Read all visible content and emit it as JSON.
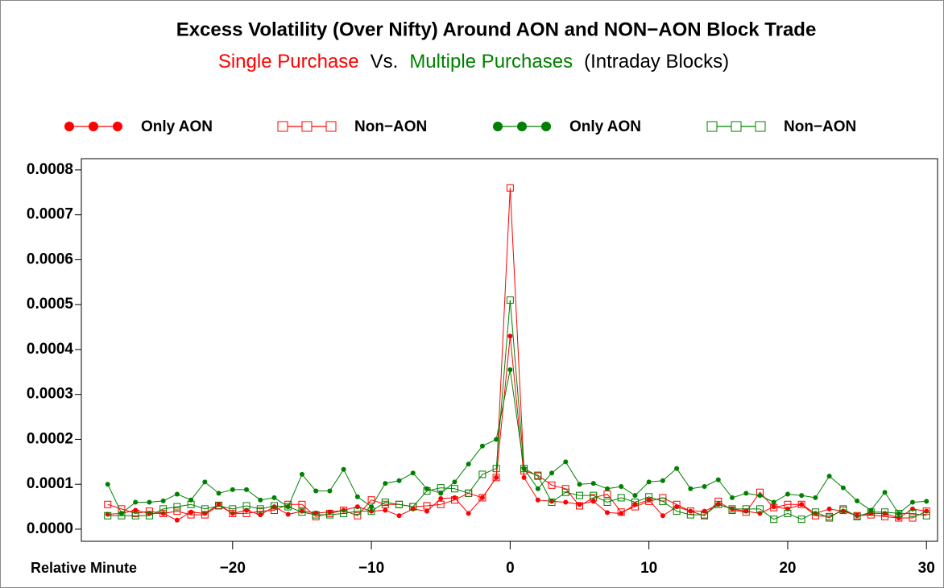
{
  "chart_data": {
    "type": "line",
    "title": "Excess Volatility (Over Nifty) Around AON and NON−AON Block Trade",
    "subtitle_parts": [
      {
        "text": "Single Purchase",
        "color": "#ff0000"
      },
      {
        "text": "Vs.",
        "color": "#000000"
      },
      {
        "text": "Multiple Purchases",
        "color": "#008000"
      },
      {
        "text": "(Intraday Blocks)",
        "color": "#000000"
      }
    ],
    "x_label": "Relative Minute",
    "x": [
      -29,
      -28,
      -27,
      -26,
      -25,
      -24,
      -23,
      -22,
      -21,
      -20,
      -19,
      -18,
      -17,
      -16,
      -15,
      -14,
      -13,
      -12,
      -11,
      -10,
      -9,
      -8,
      -7,
      -6,
      -5,
      -4,
      -3,
      -2,
      -1,
      0,
      1,
      2,
      3,
      4,
      5,
      6,
      7,
      8,
      9,
      10,
      11,
      12,
      13,
      14,
      15,
      16,
      17,
      18,
      19,
      20,
      21,
      22,
      23,
      24,
      25,
      26,
      27,
      28,
      29,
      30
    ],
    "series": [
      {
        "name": "Only AON",
        "color": "#ff0000",
        "marker": "filled-circle",
        "values": [
          3.3e-05,
          3.5e-05,
          4.2e-05,
          3.5e-05,
          3.5e-05,
          2e-05,
          3.8e-05,
          3.5e-05,
          5.5e-05,
          3.5e-05,
          4.2e-05,
          3.2e-05,
          5e-05,
          3.3e-05,
          4e-05,
          3.6e-05,
          3.8e-05,
          4.2e-05,
          5e-05,
          4e-05,
          4.2e-05,
          3e-05,
          4.5e-05,
          4e-05,
          6.8e-05,
          7e-05,
          3.5e-05,
          7e-05,
          0.000115,
          0.00043,
          0.000115,
          6.5e-05,
          6.2e-05,
          6e-05,
          5.5e-05,
          6.2e-05,
          3.7e-05,
          3.5e-05,
          5.5e-05,
          6.5e-05,
          3e-05,
          5e-05,
          4e-05,
          4e-05,
          5.5e-05,
          4.5e-05,
          4e-05,
          3.5e-05,
          5e-05,
          4.5e-05,
          5.5e-05,
          3.5e-05,
          4.5e-05,
          4e-05,
          3e-05,
          3.5e-05,
          3.5e-05,
          2.5e-05,
          4.5e-05,
          4e-05
        ]
      },
      {
        "name": "Non−AON",
        "color": "#ff0000",
        "marker": "open-square",
        "values": [
          5.5e-05,
          4.5e-05,
          3.5e-05,
          4e-05,
          3.5e-05,
          4e-05,
          3.2e-05,
          3.2e-05,
          5.3e-05,
          3.5e-05,
          3.5e-05,
          4e-05,
          4.2e-05,
          5.5e-05,
          5.5e-05,
          2.8e-05,
          3.5e-05,
          4.2e-05,
          3e-05,
          6.5e-05,
          5.5e-05,
          5.5e-05,
          5e-05,
          5.2e-05,
          5.5e-05,
          6.5e-05,
          8e-05,
          7e-05,
          0.000115,
          0.00076,
          0.00013,
          0.00012,
          9.8e-05,
          9e-05,
          5.2e-05,
          7e-05,
          7.8e-05,
          3.8e-05,
          5e-05,
          6.2e-05,
          7e-05,
          5.5e-05,
          4e-05,
          3e-05,
          6.2e-05,
          4.2e-05,
          3.8e-05,
          8.2e-05,
          4.8e-05,
          5.5e-05,
          5.5e-05,
          3e-05,
          2.8e-05,
          4.2e-05,
          3e-05,
          3.2e-05,
          2.8e-05,
          2.5e-05,
          2.5e-05,
          4e-05
        ]
      },
      {
        "name": "Only AON",
        "color": "#008000",
        "marker": "filled-circle",
        "values": [
          0.0001,
          3.5e-05,
          6e-05,
          6e-05,
          6.3e-05,
          7.8e-05,
          6.5e-05,
          0.000105,
          8e-05,
          8.8e-05,
          8.8e-05,
          6.5e-05,
          7e-05,
          5e-05,
          0.000122,
          8.5e-05,
          8.5e-05,
          0.000133,
          7.2e-05,
          5e-05,
          0.000102,
          0.000108,
          0.000125,
          9e-05,
          8e-05,
          0.000105,
          0.000145,
          0.000185,
          0.0002,
          0.000355,
          0.000135,
          9e-05,
          0.000125,
          0.00015,
          0.0001,
          0.000102,
          9e-05,
          9.5e-05,
          7.5e-05,
          0.000105,
          0.000108,
          0.000135,
          9e-05,
          9.5e-05,
          0.00011,
          7e-05,
          8e-05,
          7.5e-05,
          6e-05,
          7.8e-05,
          7.5e-05,
          7e-05,
          0.000118,
          9.2e-05,
          6.3e-05,
          4.2e-05,
          8.2e-05,
          3.5e-05,
          6e-05,
          6.2e-05
        ]
      },
      {
        "name": "Non−AON",
        "color": "#008000",
        "marker": "open-square",
        "values": [
          3e-05,
          3e-05,
          3e-05,
          3e-05,
          4.5e-05,
          5e-05,
          5.5e-05,
          4.5e-05,
          5.2e-05,
          4.5e-05,
          5.2e-05,
          4.5e-05,
          5.2e-05,
          5e-05,
          3.8e-05,
          3.2e-05,
          3.2e-05,
          3.5e-05,
          4e-05,
          4e-05,
          6e-05,
          5.5e-05,
          5e-05,
          8.5e-05,
          9.2e-05,
          9e-05,
          8e-05,
          0.000122,
          0.000135,
          0.00051,
          0.000135,
          0.000118,
          6e-05,
          8.2e-05,
          7.5e-05,
          7.5e-05,
          6e-05,
          7e-05,
          6e-05,
          7.2e-05,
          6.2e-05,
          4e-05,
          3.2e-05,
          3.2e-05,
          5.5e-05,
          4.5e-05,
          4.5e-05,
          4.5e-05,
          2.2e-05,
          3.5e-05,
          2.2e-05,
          3.8e-05,
          2.5e-05,
          4.5e-05,
          2.8e-05,
          3.8e-05,
          3.8e-05,
          3.5e-05,
          3.5e-05,
          3e-05
        ]
      }
    ],
    "xlim": [
      -30.9,
      30.8
    ],
    "xticks": [
      {
        "value": -20,
        "label": "−20"
      },
      {
        "value": -10,
        "label": "−10"
      },
      0,
      10,
      20,
      30
    ],
    "ylim": [
      -2.7e-05,
      0.000825
    ],
    "yticks": [
      {
        "value": 0,
        "label": "0.0000"
      },
      {
        "value": 0.0001,
        "label": "0.0001"
      },
      {
        "value": 0.0002,
        "label": "0.0002"
      },
      {
        "value": 0.0003,
        "label": "0.0003"
      },
      {
        "value": 0.0004,
        "label": "0.0004"
      },
      {
        "value": 0.0005,
        "label": "0.0005"
      },
      {
        "value": 0.0006,
        "label": "0.0006"
      },
      {
        "value": 0.0007,
        "label": "0.0007"
      },
      {
        "value": 0.0008,
        "label": "0.0008"
      }
    ]
  }
}
